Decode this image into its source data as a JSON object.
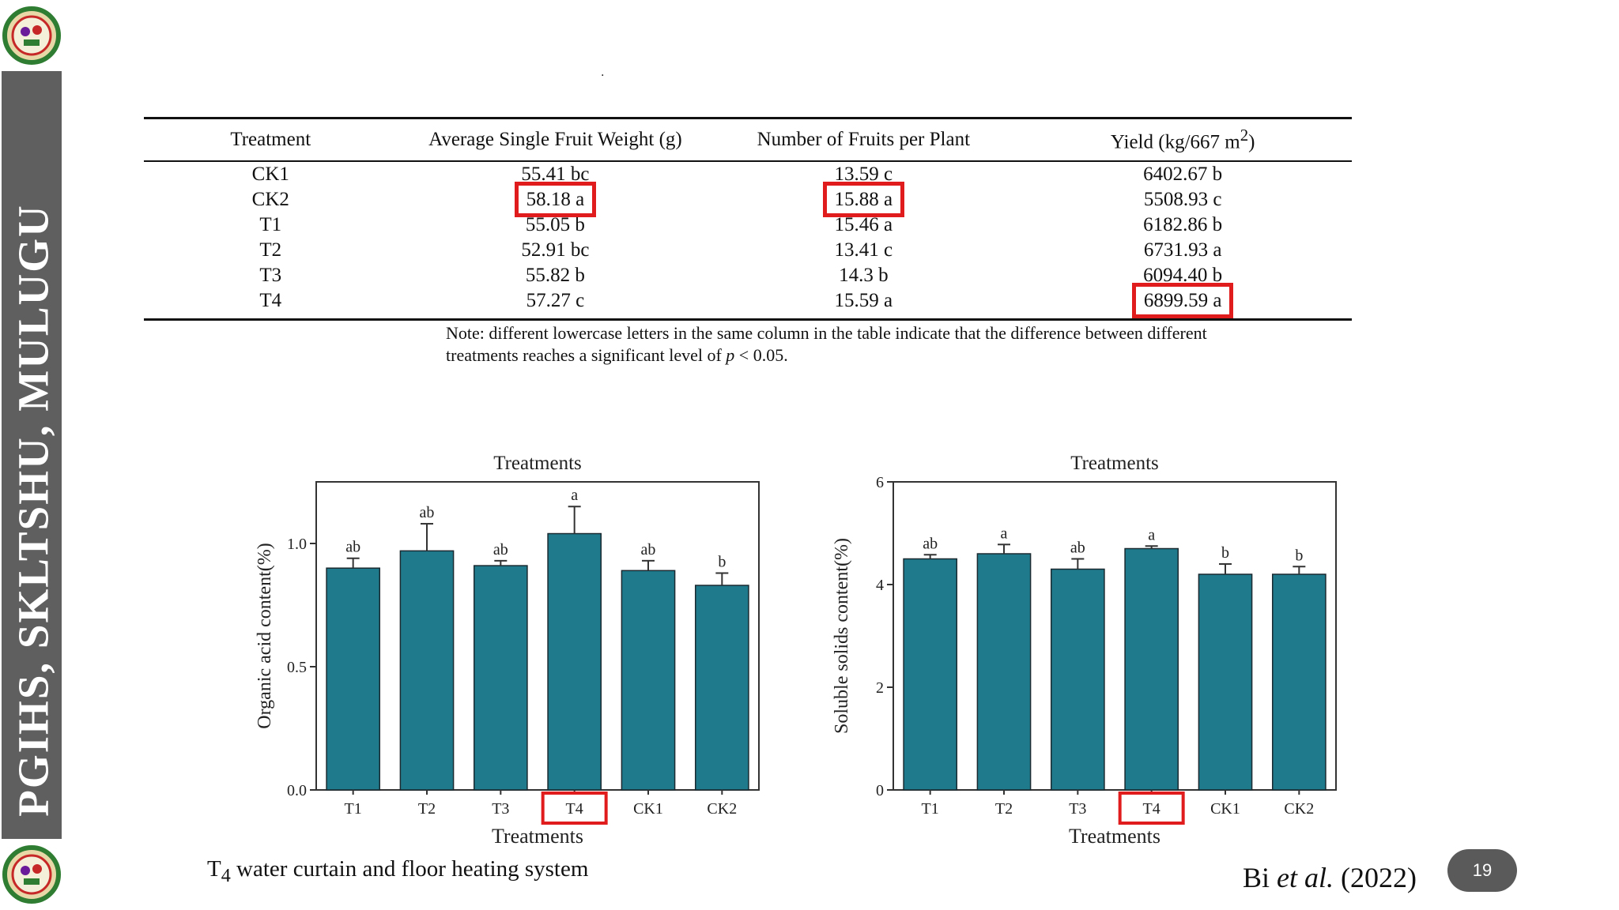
{
  "sidebar": {
    "text": "PGIHS, SKLTSHU, MULUGU"
  },
  "table": {
    "headers": [
      "Treatment",
      "Average Single Fruit Weight (g)",
      "Number of Fruits per Plant",
      "Yield (kg/667 m",
      "2",
      ")"
    ],
    "rows": [
      [
        "CK1",
        "55.41 bc",
        "13.59 c",
        "6402.67 b"
      ],
      [
        "CK2",
        "58.18 a",
        "15.88 a",
        "5508.93 c"
      ],
      [
        "T1",
        "55.05 b",
        "15.46 a",
        "6182.86 b"
      ],
      [
        "T2",
        "52.91 bc",
        "13.41 c",
        "6731.93 a"
      ],
      [
        "T3",
        "55.82 b",
        "14.3 b",
        "6094.40 b"
      ],
      [
        "T4",
        "57.27 c",
        "15.59 a",
        "6899.59 a"
      ]
    ],
    "note_line1": "Note: different lowercase letters in the same column in the table indicate that the difference between different",
    "note_line2": "treatments reaches a significant level of",
    "note_p": "p",
    "note_end": "< 0.05."
  },
  "chart_data": [
    {
      "type": "bar",
      "title": "Treatments",
      "xlabel": "Treatments",
      "ylabel": "Organic acid content(%)",
      "categories": [
        "T1",
        "T2",
        "T3",
        "T4",
        "CK1",
        "CK2"
      ],
      "values": [
        0.9,
        0.97,
        0.91,
        1.04,
        0.89,
        0.83
      ],
      "errors": [
        0.04,
        0.11,
        0.02,
        0.11,
        0.04,
        0.05
      ],
      "labels": [
        "ab",
        "ab",
        "ab",
        "a",
        "ab",
        "b"
      ],
      "ylim": [
        0,
        1.25
      ],
      "ticks": [
        0.0,
        0.5,
        1.0
      ],
      "tick_labels": [
        "0.0",
        "0.5",
        "1.0"
      ],
      "highlight": "T4",
      "color": "#1f7a8c"
    },
    {
      "type": "bar",
      "title": "Treatments",
      "xlabel": "Treatments",
      "ylabel": "Soluble solids content(%)",
      "categories": [
        "T1",
        "T2",
        "T3",
        "T4",
        "CK1",
        "CK2"
      ],
      "values": [
        4.5,
        4.6,
        4.3,
        4.7,
        4.2,
        4.2
      ],
      "errors": [
        0.08,
        0.18,
        0.2,
        0.05,
        0.2,
        0.15
      ],
      "labels": [
        "ab",
        "a",
        "ab",
        "a",
        "b",
        "b"
      ],
      "ylim": [
        0,
        6
      ],
      "ticks": [
        0,
        2,
        4,
        6
      ],
      "tick_labels": [
        "0",
        "2",
        "4",
        "6"
      ],
      "highlight": "T4",
      "color": "#1f7a8c"
    }
  ],
  "caption": {
    "prefix": "T",
    "sub": "4",
    "text": " water curtain and  floor heating system"
  },
  "citation": {
    "author": "Bi ",
    "etal": "et al.",
    "year": " (2022)"
  },
  "page_number": "19",
  "colors": {
    "accent_red": "#e01c1c",
    "bar": "#1f7a8c",
    "sidebar": "#5f5f5f"
  }
}
